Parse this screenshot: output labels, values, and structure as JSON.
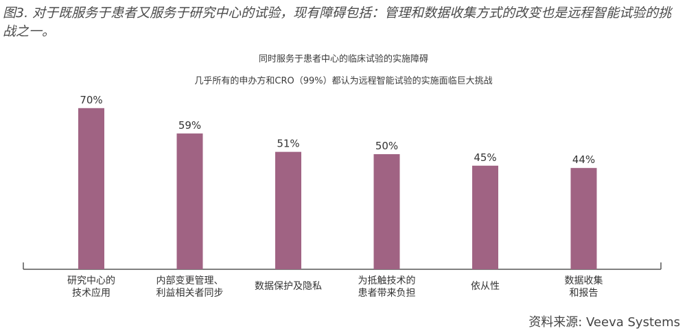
{
  "figure_caption": "图3. 对于既服务于患者又服务于研究中心的试验，现有障碍包括：管理和数据收集方式的改变也是远程智能试验的挑战之一。",
  "source": "资料来源: Veeva Systems",
  "colors": {
    "bar": "#a06383",
    "axis": "#555555"
  },
  "chart_data": {
    "type": "bar",
    "title": "同时服务于患者中心的临床试验的实施障碍",
    "subtitle": "几乎所有的申办方和CRO（99%）都认为远程智能试验的实施面临巨大挑战",
    "categories": [
      [
        "研究中心的",
        "技术应用"
      ],
      [
        "内部变更管理、",
        "利益相关者同步"
      ],
      [
        "数据保护及隐私"
      ],
      [
        "为抵触技术的",
        "患者带来负担"
      ],
      [
        "依从性"
      ],
      [
        "数据收集",
        "和报告"
      ]
    ],
    "values": [
      70,
      59,
      51,
      50,
      45,
      44
    ],
    "value_labels": [
      "70%",
      "59%",
      "51%",
      "50%",
      "45%",
      "44%"
    ],
    "ylim": [
      0,
      100
    ],
    "grid": false,
    "legend": "none"
  }
}
